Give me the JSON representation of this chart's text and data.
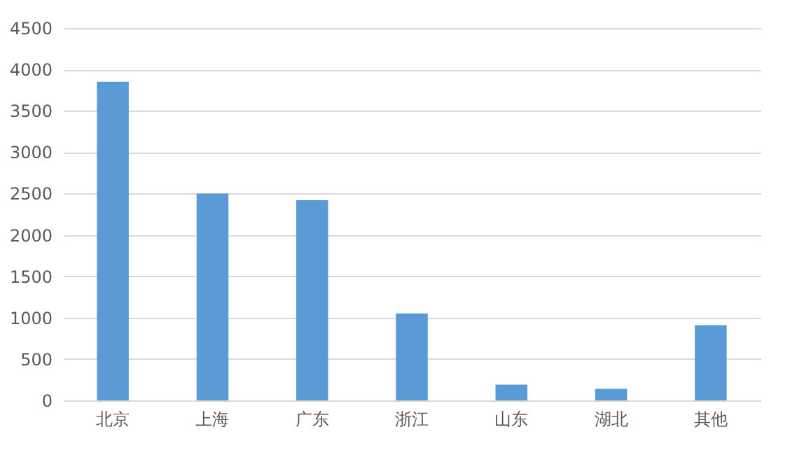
{
  "chart_data": {
    "type": "bar",
    "categories": [
      "北京",
      "上海",
      "广东",
      "浙江",
      "山东",
      "湖北",
      "其他"
    ],
    "values": [
      3850,
      2500,
      2420,
      1050,
      190,
      140,
      910
    ],
    "color": "#5b9bd5",
    "ylim": [
      0,
      4500
    ],
    "yticks": [
      0,
      500,
      1000,
      1500,
      2000,
      2500,
      3000,
      3500,
      4000,
      4500
    ],
    "grid": "y"
  }
}
